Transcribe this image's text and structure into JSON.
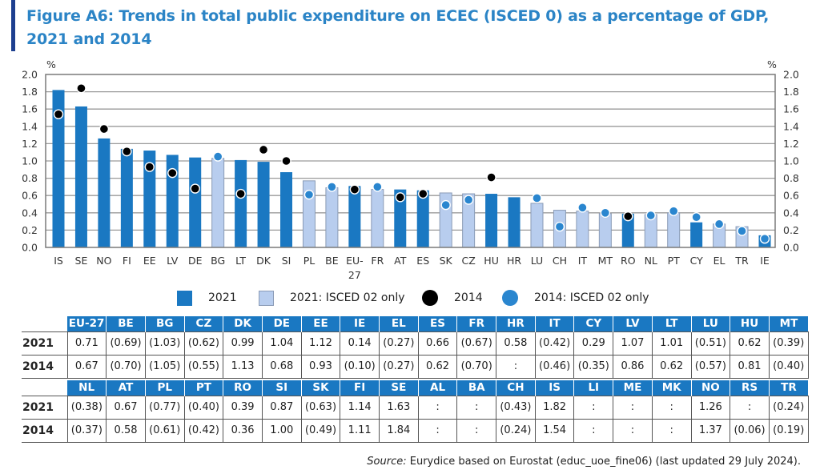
{
  "figure": {
    "title_line1": "Figure A6: Trends in total public expenditure on ECEC (ISCED 0) as a percentage of GDP,",
    "title_line2": "2021 and 2014"
  },
  "colors": {
    "title": "#2b84c6",
    "accent_bar": "#1d3f8f",
    "bar_2021": "#1a78c2",
    "bar_2021_isced02": "#b8cdee",
    "bar_2021_isced02_outline": "#8a9bb6",
    "marker_2014": "#000000",
    "marker_2014_isced02": "#2a86cf",
    "table_header": "#1a78c2"
  },
  "chart_data": {
    "type": "bar",
    "title": "Figure A6: Trends in total public expenditure on ECEC (ISCED 0) as a percentage of GDP, 2021 and 2014",
    "ylabel": "%",
    "ylabel_right": "%",
    "ylim": [
      0,
      2.0
    ],
    "yticks": [
      "0.0",
      "0.2",
      "0.4",
      "0.6",
      "0.8",
      "1.0",
      "1.2",
      "1.4",
      "1.6",
      "1.8",
      "2.0"
    ],
    "grid": true,
    "categories": [
      "IS",
      "SE",
      "NO",
      "FI",
      "EE",
      "LV",
      "DE",
      "BG",
      "LT",
      "DK",
      "SI",
      "PL",
      "BE",
      "EU-27",
      "FR",
      "AT",
      "ES",
      "SK",
      "CZ",
      "HU",
      "HR",
      "LU",
      "CH",
      "IT",
      "MT",
      "RO",
      "NL",
      "PT",
      "CY",
      "EL",
      "TR",
      "IE"
    ],
    "category_label_lines": {
      "EU-27": [
        "EU-",
        "27"
      ]
    },
    "series": [
      {
        "name": "2021",
        "kind": "bar",
        "values": [
          1.82,
          1.63,
          1.26,
          1.14,
          1.12,
          1.07,
          1.04,
          1.03,
          1.01,
          0.99,
          0.87,
          0.77,
          0.69,
          0.71,
          0.67,
          0.67,
          0.66,
          0.63,
          0.62,
          0.62,
          0.58,
          0.51,
          0.43,
          0.42,
          0.39,
          0.39,
          0.38,
          0.4,
          0.29,
          0.27,
          0.24,
          0.14
        ],
        "isced02_only": [
          false,
          false,
          false,
          false,
          false,
          false,
          false,
          true,
          false,
          false,
          false,
          true,
          true,
          false,
          true,
          false,
          false,
          true,
          true,
          false,
          false,
          true,
          true,
          true,
          true,
          false,
          true,
          true,
          false,
          true,
          true,
          false
        ]
      },
      {
        "name": "2014",
        "kind": "marker",
        "values": [
          1.54,
          1.84,
          1.37,
          1.11,
          0.93,
          0.86,
          0.68,
          1.05,
          0.62,
          1.13,
          1.0,
          0.61,
          0.7,
          0.67,
          0.7,
          0.58,
          0.62,
          0.49,
          0.55,
          0.81,
          null,
          0.57,
          0.24,
          0.46,
          0.4,
          0.36,
          0.37,
          0.42,
          0.35,
          0.27,
          0.19,
          0.1
        ],
        "isced02_only": [
          false,
          false,
          false,
          false,
          false,
          false,
          false,
          true,
          false,
          false,
          false,
          true,
          true,
          false,
          true,
          false,
          false,
          true,
          true,
          false,
          false,
          true,
          true,
          true,
          true,
          false,
          true,
          true,
          true,
          true,
          true,
          true
        ]
      }
    ],
    "legend": {
      "placement": "bottom",
      "entries": [
        {
          "label": "2021",
          "symbol": "dark-square"
        },
        {
          "label": "2021: ISCED 02 only",
          "symbol": "light-square"
        },
        {
          "label": "2014",
          "symbol": "black-circle"
        },
        {
          "label": "2014: ISCED 02 only",
          "symbol": "blue-circle"
        }
      ]
    }
  },
  "table": {
    "row_labels": [
      "2021",
      "2014"
    ],
    "blocks": [
      {
        "headers": [
          "EU-27",
          "BE",
          "BG",
          "CZ",
          "DK",
          "DE",
          "EE",
          "IE",
          "EL",
          "ES",
          "FR",
          "HR",
          "IT",
          "CY",
          "LV",
          "LT",
          "LU",
          "HU",
          "MT"
        ],
        "rows": [
          [
            "0.71",
            "(0.69)",
            "(1.03)",
            "(0.62)",
            "0.99",
            "1.04",
            "1.12",
            "0.14",
            "(0.27)",
            "0.66",
            "(0.67)",
            "0.58",
            "(0.42)",
            "0.29",
            "1.07",
            "1.01",
            "(0.51)",
            "0.62",
            "(0.39)"
          ],
          [
            "0.67",
            "(0.70)",
            "(1.05)",
            "(0.55)",
            "1.13",
            "0.68",
            "0.93",
            "(0.10)",
            "(0.27)",
            "0.62",
            "(0.70)",
            ":",
            "(0.46)",
            "(0.35)",
            "0.86",
            "0.62",
            "(0.57)",
            "0.81",
            "(0.40)"
          ]
        ]
      },
      {
        "headers": [
          "NL",
          "AT",
          "PL",
          "PT",
          "RO",
          "SI",
          "SK",
          "FI",
          "SE",
          "AL",
          "BA",
          "CH",
          "IS",
          "LI",
          "ME",
          "MK",
          "NO",
          "RS",
          "TR"
        ],
        "rows": [
          [
            "(0.38)",
            "0.67",
            "(0.77)",
            "(0.40)",
            "0.39",
            "0.87",
            "(0.63)",
            "1.14",
            "1.63",
            ":",
            ":",
            "(0.43)",
            "1.82",
            ":",
            ":",
            ":",
            "1.26",
            ":",
            "(0.24)"
          ],
          [
            "(0.37)",
            "0.58",
            "(0.61)",
            "(0.42)",
            "0.36",
            "1.00",
            "(0.49)",
            "1.11",
            "1.84",
            ":",
            ":",
            "(0.24)",
            "1.54",
            ":",
            ":",
            ":",
            "1.37",
            "(0.06)",
            "(0.19)"
          ]
        ]
      }
    ]
  },
  "source": {
    "label": "Source:",
    "text": " Eurydice based on Eurostat (educ_uoe_fine06) (last updated 29 July 2024)."
  }
}
